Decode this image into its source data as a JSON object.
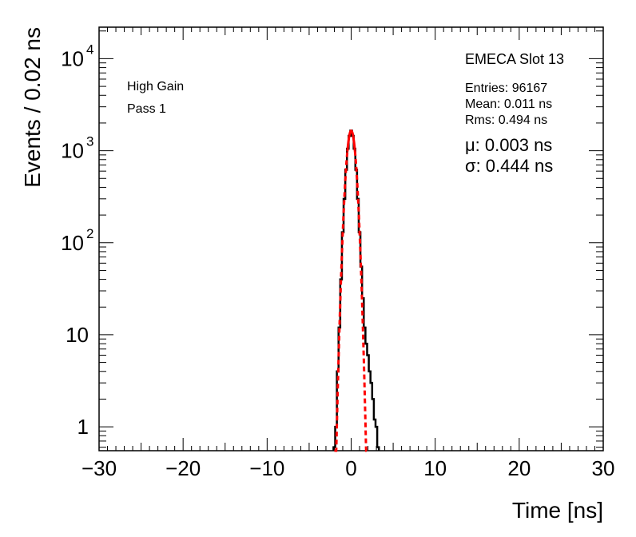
{
  "chart_data": {
    "type": "histogram",
    "title": "EMECA Slot 13",
    "xlabel": "Time [ns]",
    "ylabel": "Events / 0.02 ns",
    "xlim": [
      -30,
      30
    ],
    "ylim": [
      0.55,
      22000
    ],
    "yscale": "log",
    "x_ticks": [
      -30,
      -20,
      -10,
      0,
      10,
      20,
      30
    ],
    "x_tick_labels": [
      "−30",
      "−20",
      "−10",
      "0",
      "10",
      "20",
      "30"
    ],
    "y_ticks": [
      {
        "value": 1,
        "base": "1",
        "exp": ""
      },
      {
        "value": 10,
        "base": "10",
        "exp": ""
      },
      {
        "value": 100,
        "base": "10",
        "exp": "2"
      },
      {
        "value": 1000,
        "base": "10",
        "exp": "3"
      },
      {
        "value": 10000,
        "base": "10",
        "exp": "4"
      }
    ],
    "annotations": {
      "gain": "High Gain",
      "pass": "Pass 1",
      "entries": "Entries: 96167",
      "mean": "Mean: 0.011 ns",
      "rms": "Rms: 0.494 ns",
      "mu": "μ: 0.003 ns",
      "sigma": "σ: 0.444 ns"
    },
    "series": [
      {
        "name": "data histogram",
        "style": "step",
        "color": "#000000",
        "x": [
          -2.0,
          -1.8,
          -1.6,
          -1.4,
          -1.2,
          -1.0,
          -0.8,
          -0.6,
          -0.4,
          -0.2,
          0.0,
          0.2,
          0.4,
          0.6,
          0.8,
          1.0,
          1.2,
          1.4,
          1.6,
          1.8,
          2.0,
          2.2,
          2.4,
          2.6,
          2.8,
          3.0,
          3.2
        ],
        "y": [
          0.6,
          1,
          4,
          12,
          40,
          130,
          300,
          620,
          1050,
          1450,
          1650,
          1450,
          1050,
          620,
          300,
          130,
          55,
          25,
          12,
          8,
          6,
          4,
          3,
          2,
          1.2,
          1,
          0.6
        ]
      },
      {
        "name": "gaussian fit",
        "style": "curve",
        "color": "#ff0000",
        "mu": 0.003,
        "sigma": 0.444,
        "amplitude": 1650,
        "x_range_solid": [
          -0.45,
          0.45
        ],
        "x_range_full": [
          -2.0,
          2.0
        ]
      }
    ]
  }
}
